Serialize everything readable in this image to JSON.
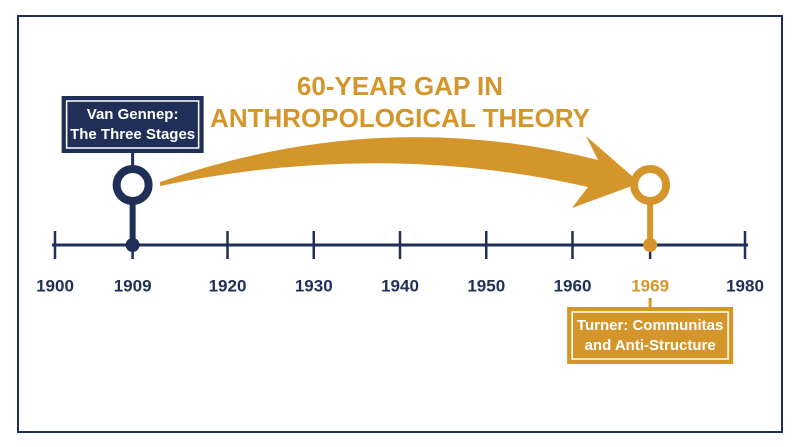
{
  "title": {
    "lines": [
      "60-YEAR GAP IN",
      "ANTHROPOLOGICAL THEORY"
    ]
  },
  "axis": {
    "ticks": [
      1900,
      1920,
      1930,
      1940,
      1950,
      1960,
      1980
    ]
  },
  "events": [
    {
      "year": 1909,
      "label": [
        "Van Gennep:",
        "The Three Stages"
      ],
      "color": "#1f2f57"
    },
    {
      "year": 1969,
      "label": [
        "Turner: Communitas",
        "and Anti-Structure"
      ],
      "color": "#d4962a"
    }
  ]
}
